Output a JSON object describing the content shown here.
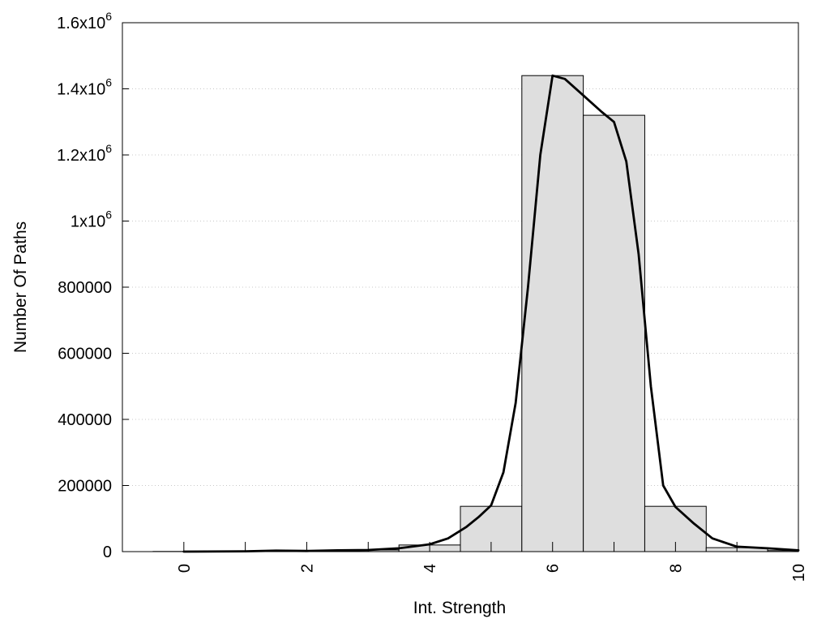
{
  "chart_data": {
    "type": "bar",
    "xlabel": "Int. Strength",
    "ylabel": "Number Of Paths",
    "xlim": [
      -1,
      10
    ],
    "ylim": [
      0,
      1600000
    ],
    "grid": true,
    "x_ticks": [
      {
        "value": 0,
        "label": "0"
      },
      {
        "value": 2,
        "label": "2"
      },
      {
        "value": 4,
        "label": "4"
      },
      {
        "value": 6,
        "label": "6"
      },
      {
        "value": 8,
        "label": "8"
      },
      {
        "value": 10,
        "label": "10"
      }
    ],
    "y_ticks": [
      {
        "value": 0,
        "base": "0",
        "exp": ""
      },
      {
        "value": 200000,
        "base": "200000",
        "exp": ""
      },
      {
        "value": 400000,
        "base": "400000",
        "exp": ""
      },
      {
        "value": 600000,
        "base": "600000",
        "exp": ""
      },
      {
        "value": 800000,
        "base": "800000",
        "exp": ""
      },
      {
        "value": 1000000,
        "base": "1x10",
        "exp": "6"
      },
      {
        "value": 1200000,
        "base": "1.2x10",
        "exp": "6"
      },
      {
        "value": 1400000,
        "base": "1.4x10",
        "exp": "6"
      },
      {
        "value": 1600000,
        "base": "1.6x10",
        "exp": "6"
      }
    ],
    "bars": {
      "width": 1,
      "x": [
        0,
        1,
        2,
        3,
        4,
        5,
        6,
        7,
        8,
        9,
        10
      ],
      "values": [
        500,
        1000,
        2000,
        5000,
        20000,
        137000,
        1440000,
        1320000,
        137000,
        12000,
        3000
      ]
    },
    "curve": {
      "x": [
        0,
        1,
        1.5,
        2,
        2.5,
        3,
        3.5,
        4,
        4.3,
        4.6,
        4.8,
        5,
        5.2,
        5.4,
        5.6,
        5.8,
        6,
        6.2,
        6.5,
        6.8,
        7,
        7.2,
        7.4,
        7.6,
        7.8,
        8,
        8.3,
        8.6,
        9,
        9.5,
        10
      ],
      "y": [
        0,
        1000,
        3000,
        2000,
        4000,
        5000,
        10000,
        22000,
        40000,
        75000,
        105000,
        140000,
        240000,
        450000,
        800000,
        1200000,
        1440000,
        1430000,
        1380000,
        1330000,
        1300000,
        1180000,
        900000,
        500000,
        200000,
        135000,
        85000,
        40000,
        15000,
        10000,
        4000
      ]
    }
  }
}
